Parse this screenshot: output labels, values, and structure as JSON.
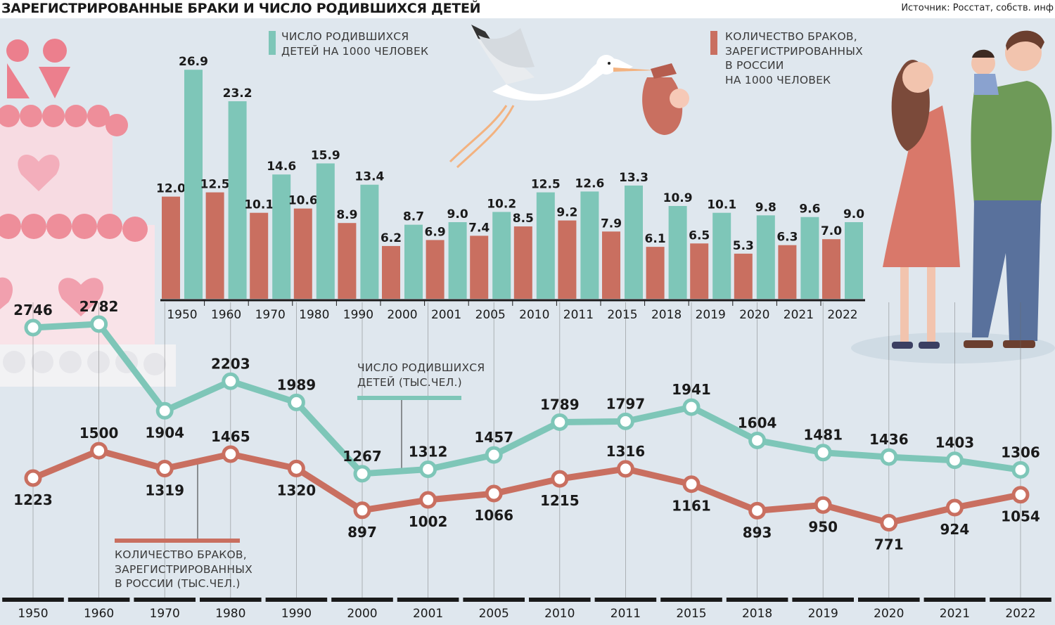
{
  "header": {
    "title": "ЗАРЕГИСТРИРОВАННЫЕ БРАКИ И ЧИСЛО РОДИВШИХСЯ ДЕТЕЙ",
    "source": "Источник: Росстат, собств. инф"
  },
  "colors": {
    "births": "#7ec6b8",
    "marriages": "#c96f60",
    "background": "#dfe7ee",
    "axis": "#1a1a1a"
  },
  "legend": {
    "births_rate": [
      "ЧИСЛО РОДИВШИХСЯ",
      "ДЕТЕЙ НА 1000 ЧЕЛОВЕК"
    ],
    "marriages_rate": [
      "КОЛИЧЕСТВО БРАКОВ,",
      "ЗАРЕГИСТРИРОВАННЫХ",
      "В РОССИИ",
      "НА 1000 ЧЕЛОВЕК"
    ],
    "births_total": [
      "ЧИСЛО РОДИВШИХСЯ",
      "ДЕТЕЙ (ТЫС.ЧЕЛ.)"
    ],
    "marriages_total": [
      "КОЛИЧЕСТВО БРАКОВ,",
      "ЗАРЕГИСТРИРОВАННЫХ",
      "В РОССИИ (ТЫС.ЧЕЛ.)"
    ]
  },
  "illustrations": [
    "wedding-cake",
    "stork-with-baby",
    "family"
  ],
  "chart_data": [
    {
      "type": "bar",
      "categories": [
        "1950",
        "1960",
        "1970",
        "1980",
        "1990",
        "2000",
        "2001",
        "2005",
        "2010",
        "2011",
        "2015",
        "2018",
        "2019",
        "2020",
        "2021",
        "2022"
      ],
      "series": [
        {
          "name": "КОЛИЧЕСТВО БРАКОВ, ЗАРЕГИСТРИРОВАННЫХ В РОССИИ НА 1000 ЧЕЛОВЕК",
          "color": "#c96f60",
          "values": [
            12.0,
            12.5,
            10.1,
            10.6,
            8.9,
            6.2,
            6.9,
            7.4,
            8.5,
            9.2,
            7.9,
            6.1,
            6.5,
            5.3,
            6.3,
            7.0
          ]
        },
        {
          "name": "ЧИСЛО РОДИВШИХСЯ ДЕТЕЙ НА 1000 ЧЕЛОВЕК",
          "color": "#7ec6b8",
          "values": [
            26.9,
            23.2,
            14.6,
            15.9,
            13.4,
            8.7,
            9.0,
            10.2,
            12.5,
            12.6,
            13.3,
            10.9,
            10.1,
            9.8,
            9.6,
            9.0
          ]
        }
      ],
      "labels": [
        [
          "12.0",
          "26.9"
        ],
        [
          "12.5",
          "23.2"
        ],
        [
          "10.1",
          "14.6"
        ],
        [
          "10.6",
          "15.9"
        ],
        [
          "8.9",
          "13.4"
        ],
        [
          "6.2",
          "8.7"
        ],
        [
          "6.9",
          "9.0"
        ],
        [
          "7.4",
          "10.2"
        ],
        [
          "8.5",
          "12.5"
        ],
        [
          "9.2",
          "12.6"
        ],
        [
          "7.9",
          "13.3"
        ],
        [
          "6.1",
          "10.9"
        ],
        [
          "6.5",
          "10.1"
        ],
        [
          "5.3",
          "9.8"
        ],
        [
          "6.3",
          "9.6"
        ],
        [
          "7.0",
          "9.0"
        ]
      ],
      "ylim": [
        0,
        27
      ],
      "grid": false,
      "legend_position": "top"
    },
    {
      "type": "line",
      "categories": [
        "1950",
        "1960",
        "1970",
        "1980",
        "1990",
        "2000",
        "2001",
        "2005",
        "2010",
        "2011",
        "2015",
        "2018",
        "2019",
        "2020",
        "2021",
        "2022"
      ],
      "series": [
        {
          "name": "ЧИСЛО РОДИВШИХСЯ ДЕТЕЙ (ТЫС.ЧЕЛ.)",
          "color": "#7ec6b8",
          "values": [
            2746,
            2782,
            1904,
            2203,
            1989,
            1267,
            1312,
            1457,
            1789,
            1797,
            1941,
            1604,
            1481,
            1436,
            1403,
            1306
          ]
        },
        {
          "name": "КОЛИЧЕСТВО БРАКОВ, ЗАРЕГИСТРИРОВАННЫХ В РОССИИ (ТЫС.ЧЕЛ.)",
          "color": "#c96f60",
          "values": [
            1223,
            1500,
            1319,
            1465,
            1320,
            897,
            1002,
            1066,
            1215,
            1316,
            1161,
            893,
            950,
            771,
            924,
            1054
          ]
        }
      ],
      "ylim": [
        700,
        2800
      ],
      "grid": true,
      "legend_position": "inline"
    }
  ]
}
